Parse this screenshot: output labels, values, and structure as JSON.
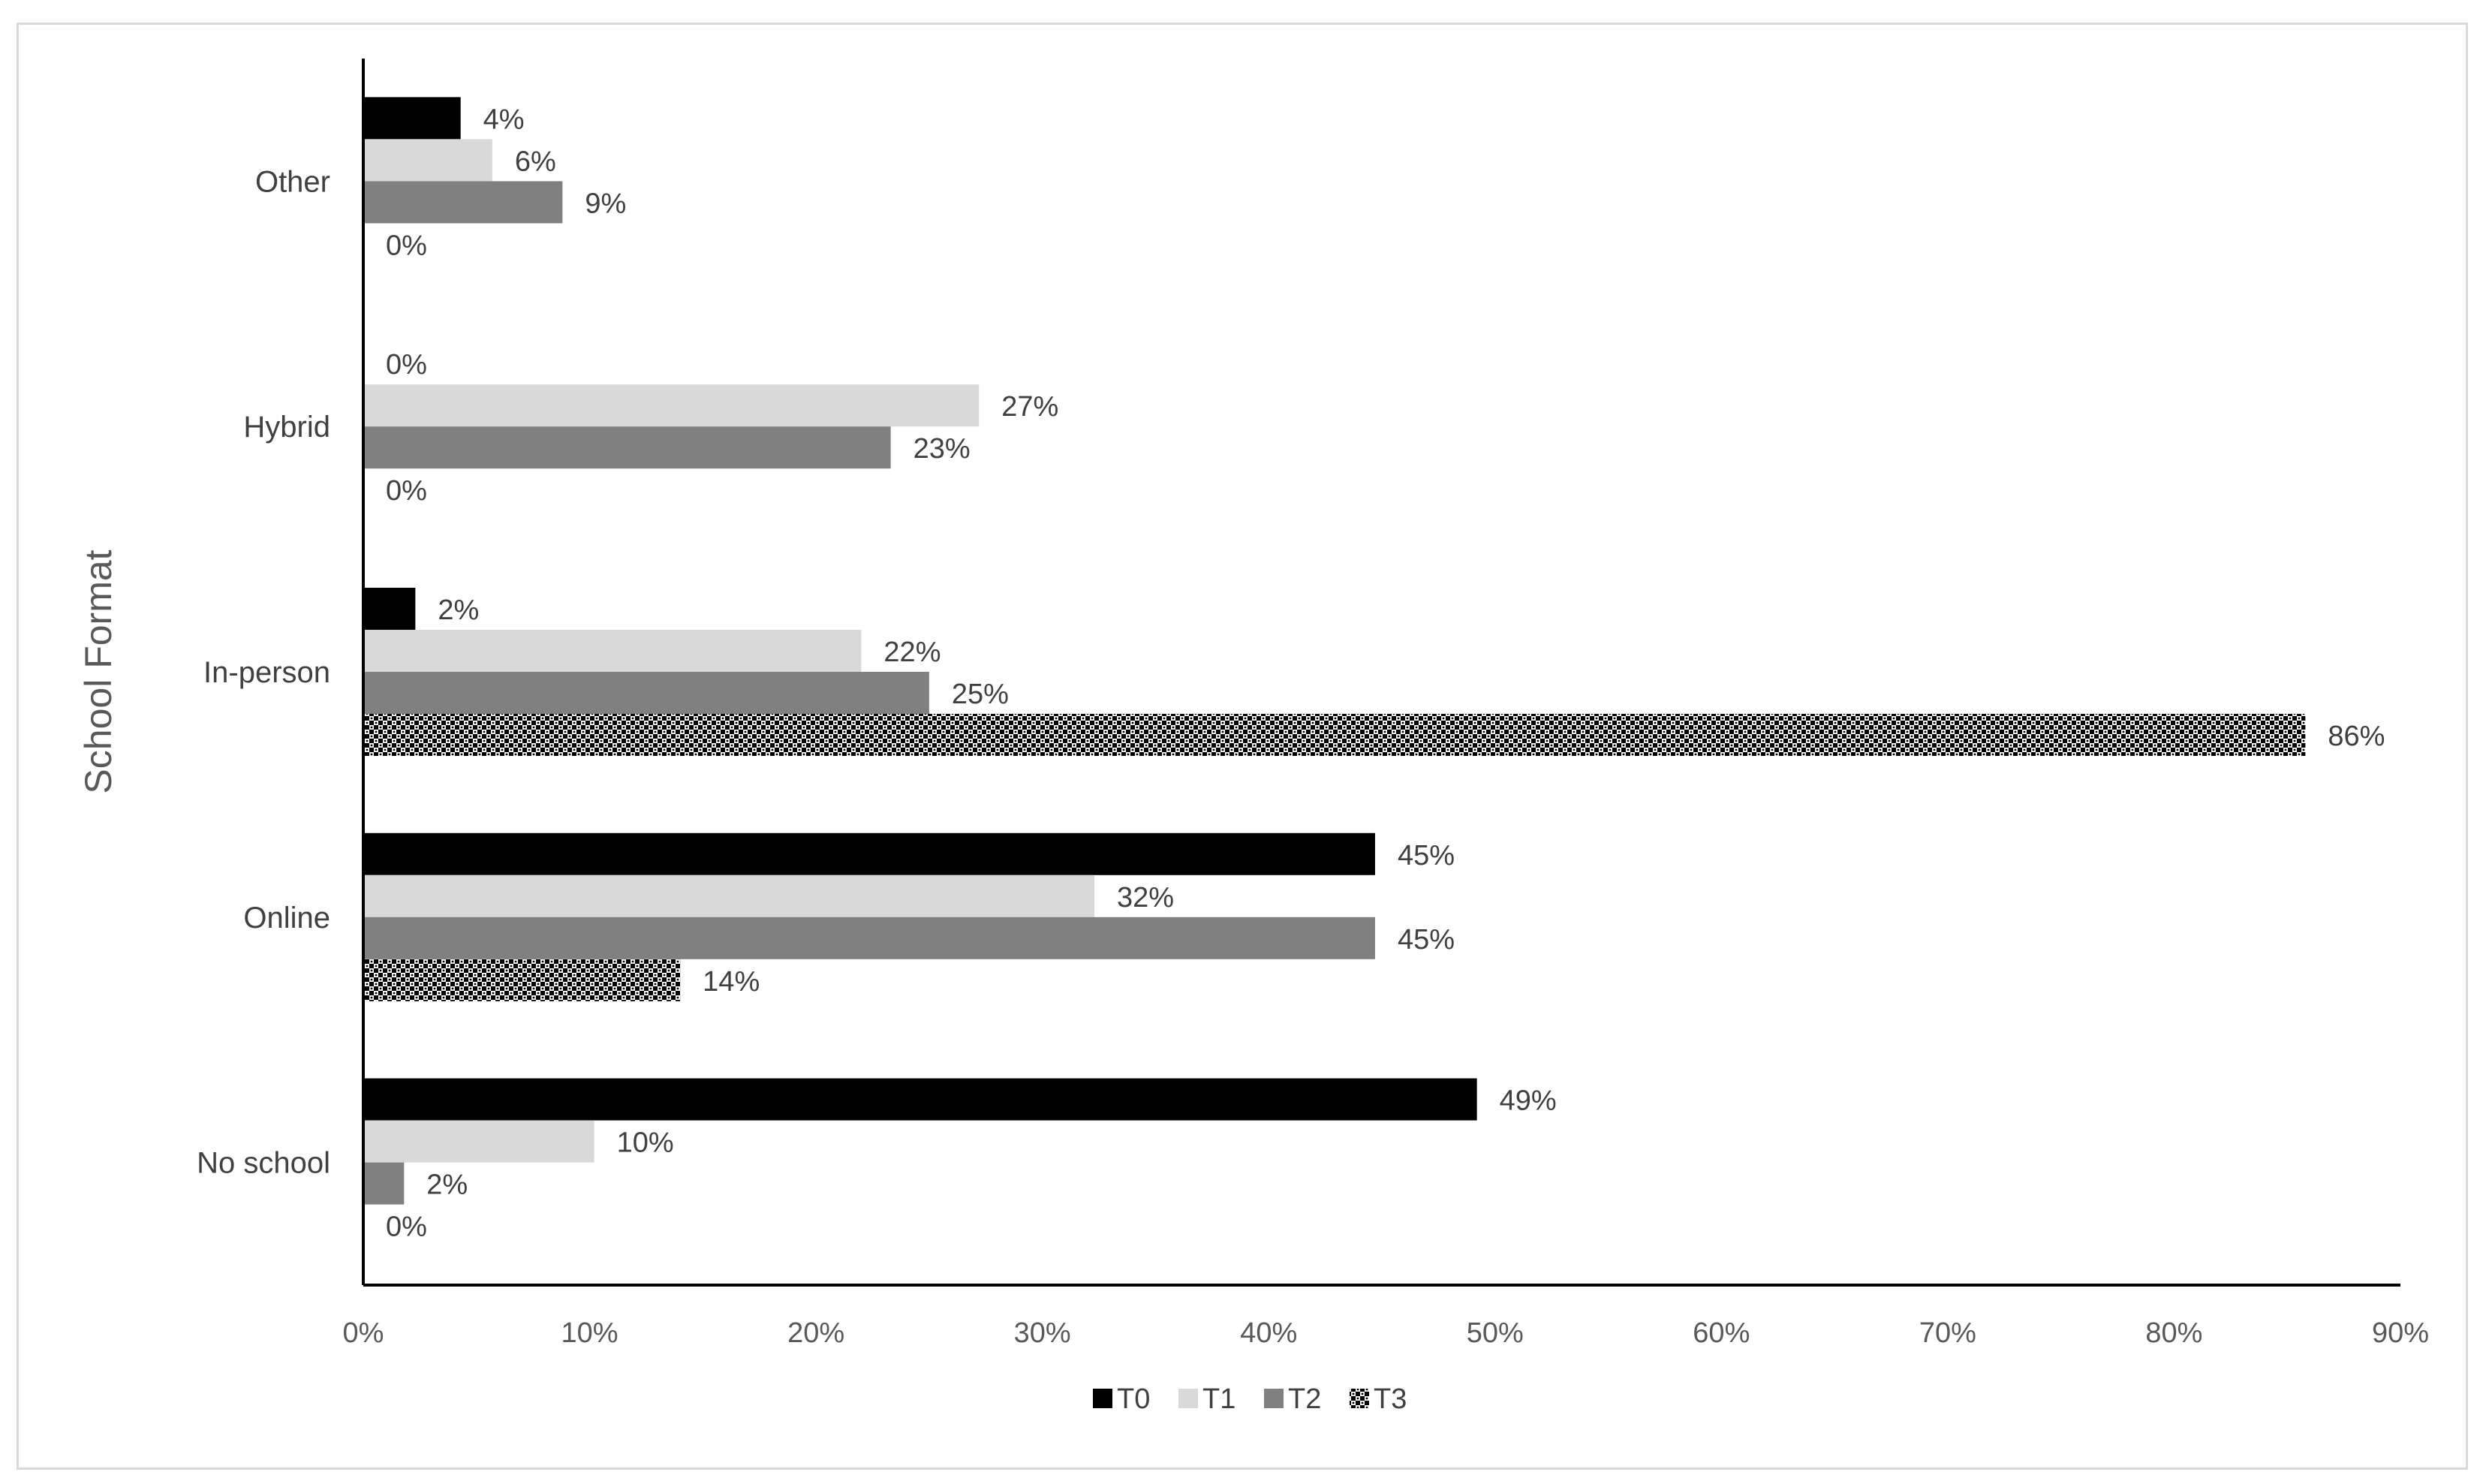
{
  "chart_data": {
    "type": "bar",
    "orientation": "horizontal",
    "title": "",
    "xlabel": "",
    "ylabel": "School Format",
    "xlim": [
      0,
      90
    ],
    "x_ticks": [
      "0%",
      "10%",
      "20%",
      "30%",
      "40%",
      "50%",
      "60%",
      "70%",
      "80%",
      "90%"
    ],
    "categories": [
      "No school",
      "Online",
      "In-person",
      "Hybrid",
      "Other"
    ],
    "series": [
      {
        "name": "T0",
        "values": [
          49.2,
          44.7,
          2.3,
          0,
          4.3
        ],
        "labels": [
          "49%",
          "45%",
          "2%",
          "0%",
          "4%"
        ],
        "color": "#000000",
        "pattern": "solid"
      },
      {
        "name": "T1",
        "values": [
          10.2,
          32.3,
          22.0,
          27.2,
          5.7
        ],
        "labels": [
          "10%",
          "32%",
          "22%",
          "27%",
          "6%"
        ],
        "color": "#d9d9d9",
        "pattern": "solid"
      },
      {
        "name": "T2",
        "values": [
          1.8,
          44.7,
          25.0,
          23.3,
          8.8
        ],
        "labels": [
          "2%",
          "45%",
          "25%",
          "23%",
          "9%"
        ],
        "color": "#808080",
        "pattern": "solid"
      },
      {
        "name": "T3",
        "values": [
          0,
          14.0,
          85.8,
          0,
          0
        ],
        "labels": [
          "0%",
          "14%",
          "86%",
          "0%",
          "0%"
        ],
        "color": "#000000",
        "pattern": "checker"
      }
    ],
    "grid": false,
    "legend_position": "bottom"
  }
}
